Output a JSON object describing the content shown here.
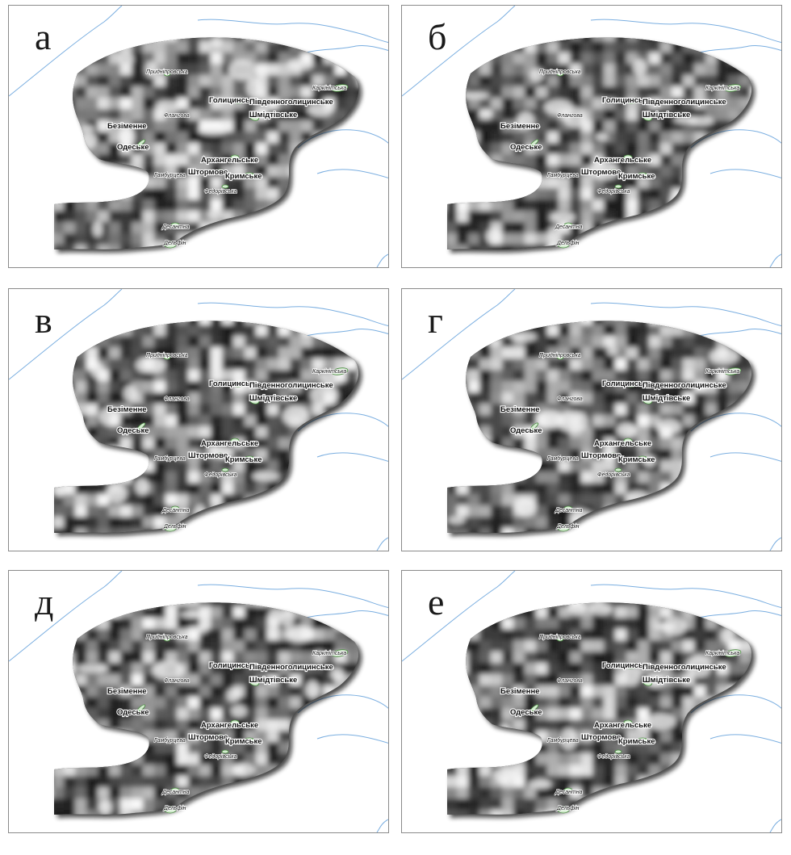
{
  "panels": [
    {
      "letter": "а",
      "variant": 0
    },
    {
      "letter": "б",
      "variant": 1
    },
    {
      "letter": "в",
      "variant": 2
    },
    {
      "letter": "г",
      "variant": 3
    },
    {
      "letter": "д",
      "variant": 4
    },
    {
      "letter": "е",
      "variant": 5
    }
  ],
  "places": {
    "pradniprovska": "Придніпровська",
    "karkinitska": "Каркінітська",
    "golytsynske": "Голицинське",
    "pivdennogolytsynske": "Південноголицинське",
    "flanhova": "Флангова",
    "shmidtivske": "Шмідтівське",
    "bezimenne": "Безіменне",
    "odeske": "Одеське",
    "arkhangelske": "Архангельське",
    "shtormove": "Штормове",
    "hamburtseva": "Гамбурцева",
    "krymske": "Кримське",
    "fedorivska": "Федорівська",
    "desantna": "Десантна",
    "delfin": "Дельфін"
  },
  "colors": {
    "coast": "#7aaee0",
    "field_dark": "#2a2a2a",
    "field_light": "#f4f4f4",
    "field_shadow": "#0a0a0a",
    "deposit_fill": "#d4ecd0",
    "deposit_stroke": "#4a8a40"
  },
  "icons": {
    "deposit": "deposit-outline-icon"
  }
}
